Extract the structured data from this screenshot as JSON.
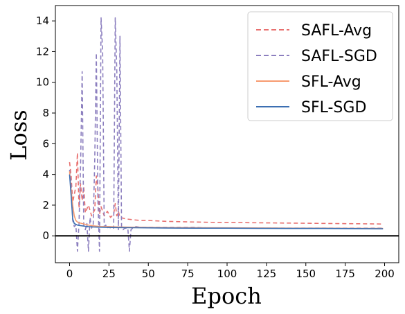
{
  "chart_data": {
    "type": "line",
    "title": "",
    "xlabel": "Epoch",
    "ylabel": "Loss",
    "xlim": [
      -9,
      209
    ],
    "ylim": [
      -1.75,
      15
    ],
    "xticks": [
      0,
      25,
      50,
      75,
      100,
      125,
      150,
      175,
      200
    ],
    "yticks": [
      0,
      2,
      4,
      6,
      8,
      10,
      12,
      14
    ],
    "grid": false,
    "legend_position": "top-right",
    "hline": {
      "y": 0,
      "color": "#000000"
    },
    "series": [
      {
        "name": "SAFL-Avg",
        "color": "#e8706f",
        "style": "dashed",
        "x": [
          0,
          1,
          2,
          3,
          4,
          5,
          6,
          7,
          8,
          9,
          10,
          12,
          14,
          16,
          17,
          18,
          19,
          20,
          22,
          24,
          26,
          28,
          29,
          30,
          31,
          32,
          34,
          36,
          40,
          45,
          50,
          60,
          70,
          80,
          90,
          100,
          110,
          120,
          130,
          140,
          150,
          160,
          170,
          180,
          190,
          199
        ],
        "y": [
          4.8,
          3.9,
          2.2,
          2.7,
          3.2,
          5.4,
          1.8,
          3.4,
          2.3,
          3.2,
          1.5,
          2.0,
          1.3,
          1.7,
          3.9,
          3.1,
          1.4,
          1.9,
          1.3,
          1.6,
          1.2,
          1.4,
          2.1,
          1.3,
          1.6,
          1.2,
          1.15,
          1.1,
          1.05,
          1.0,
          1.0,
          0.95,
          0.92,
          0.9,
          0.88,
          0.87,
          0.86,
          0.85,
          0.84,
          0.83,
          0.82,
          0.81,
          0.8,
          0.79,
          0.78,
          0.77
        ]
      },
      {
        "name": "SAFL-SGD",
        "color": "#8c7fbf",
        "style": "dashed",
        "x": [
          0,
          1,
          2,
          3,
          4,
          5,
          6,
          7,
          8,
          9,
          10,
          11,
          12,
          13,
          14,
          15,
          16,
          17,
          18,
          19,
          20,
          21,
          22,
          23,
          24,
          25,
          26,
          27,
          28,
          29,
          30,
          31,
          32,
          33,
          34,
          35,
          36,
          37,
          38,
          39,
          40,
          42,
          45,
          50,
          60,
          70,
          80,
          90,
          100,
          110,
          120,
          130,
          140,
          150,
          160,
          170,
          180,
          190,
          199
        ],
        "y": [
          4.3,
          3.5,
          1.0,
          0.6,
          0.7,
          -1.0,
          0.8,
          4.6,
          10.7,
          0.7,
          0.4,
          0.8,
          -1.0,
          1.2,
          0.5,
          0.7,
          5.0,
          11.9,
          2.3,
          -1.0,
          14.2,
          12.0,
          0.6,
          0.7,
          0.5,
          0.6,
          0.5,
          0.6,
          0.5,
          14.2,
          10.7,
          0.4,
          13.0,
          0.6,
          0.4,
          0.5,
          0.5,
          0.5,
          -1.0,
          0.4,
          0.5,
          0.6,
          0.55,
          0.55,
          0.55,
          0.55,
          0.55,
          0.5,
          0.5,
          0.5,
          0.5,
          0.5,
          0.5,
          0.5,
          0.5,
          0.5,
          0.5,
          0.5,
          0.5
        ]
      },
      {
        "name": "SFL-Avg",
        "color": "#f79a6f",
        "style": "solid",
        "x": [
          0,
          1,
          2,
          3,
          4,
          5,
          6,
          8,
          10,
          12,
          15,
          20,
          25,
          30,
          40,
          50,
          60,
          80,
          100,
          120,
          140,
          160,
          180,
          199
        ],
        "y": [
          4.2,
          3.0,
          2.0,
          1.3,
          1.0,
          0.9,
          0.85,
          0.8,
          0.75,
          0.7,
          0.65,
          0.6,
          0.6,
          0.58,
          0.56,
          0.55,
          0.54,
          0.53,
          0.52,
          0.51,
          0.5,
          0.5,
          0.49,
          0.48
        ]
      },
      {
        "name": "SFL-SGD",
        "color": "#3c6fb2",
        "style": "solid",
        "x": [
          0,
          1,
          2,
          3,
          4,
          5,
          6,
          8,
          10,
          12,
          15,
          20,
          25,
          30,
          40,
          50,
          60,
          80,
          100,
          120,
          140,
          160,
          180,
          199
        ],
        "y": [
          4.0,
          2.6,
          1.1,
          0.8,
          0.75,
          0.7,
          0.68,
          0.65,
          0.62,
          0.6,
          0.58,
          0.56,
          0.55,
          0.54,
          0.53,
          0.52,
          0.51,
          0.5,
          0.5,
          0.49,
          0.48,
          0.48,
          0.47,
          0.46
        ]
      }
    ]
  }
}
